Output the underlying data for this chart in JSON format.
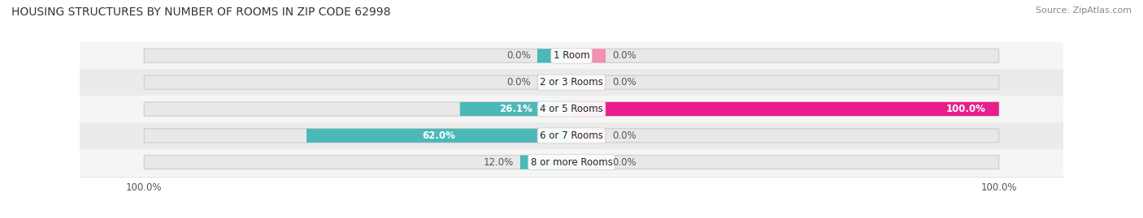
{
  "title": "HOUSING STRUCTURES BY NUMBER OF ROOMS IN ZIP CODE 62998",
  "source": "Source: ZipAtlas.com",
  "categories": [
    "1 Room",
    "2 or 3 Rooms",
    "4 or 5 Rooms",
    "6 or 7 Rooms",
    "8 or more Rooms"
  ],
  "owner_occupied": [
    0.0,
    0.0,
    26.1,
    62.0,
    12.0
  ],
  "renter_occupied": [
    0.0,
    0.0,
    100.0,
    0.0,
    0.0
  ],
  "owner_color": "#4db8b8",
  "renter_color": "#f48fb1",
  "renter_color_full": "#e91e8c",
  "bar_bg_color": "#e0e0e0",
  "row_bg_even": "#f5f5f5",
  "row_bg_odd": "#ebebeb",
  "max_value": 100.0,
  "stub_size": 8.0,
  "title_fontsize": 10,
  "source_fontsize": 8,
  "label_fontsize": 8.5,
  "category_fontsize": 8.5,
  "axis_label_fontsize": 8.5,
  "label_color_inside": "#ffffff",
  "label_color_outside": "#555555",
  "label_color_inside_dark": "#333333"
}
